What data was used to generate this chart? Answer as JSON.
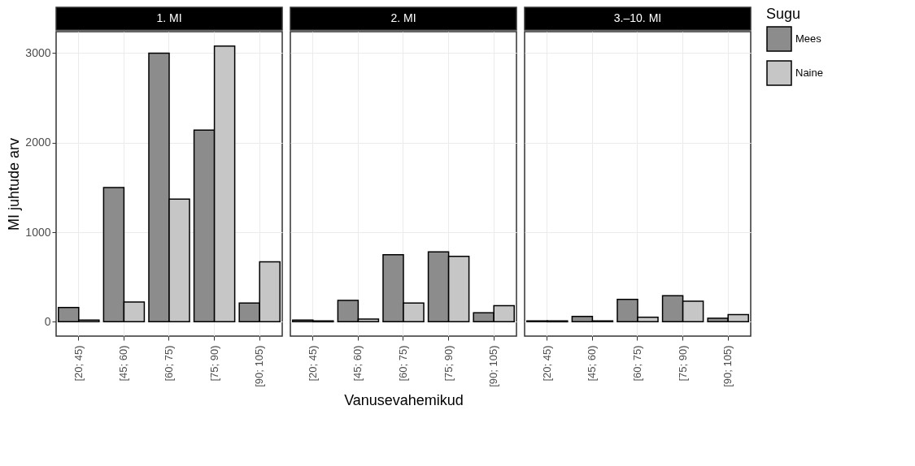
{
  "chart_data": [
    {
      "type": "bar",
      "title": "1. MI",
      "ylabel": "MI juhtude arv",
      "legend_title": "Sugu",
      "legend": "right",
      "categories": [
        "[20; 45)",
        "[45; 60)",
        "[60; 75)",
        "[75; 90)",
        "[90; 105)"
      ],
      "ylim": [
        -160,
        3240
      ],
      "yticks": [
        0,
        1000,
        2000,
        3000
      ],
      "grid": true,
      "series": [
        {
          "name": "Mees",
          "color": "#8c8c8c",
          "values": [
            160,
            1500,
            3000,
            2140,
            210
          ]
        },
        {
          "name": "Naine",
          "color": "#c6c6c6",
          "values": [
            20,
            220,
            1370,
            3080,
            670
          ]
        }
      ]
    },
    {
      "type": "bar",
      "title": "2. MI",
      "xlabel": "Vanusevahemikud",
      "categories": [
        "[20; 45)",
        "[45; 60)",
        "[60; 75)",
        "[75; 90)",
        "[90; 105)"
      ],
      "ylim": [
        -160,
        3240
      ],
      "yticks": [
        0,
        1000,
        2000,
        3000
      ],
      "grid": true,
      "tick_labels": "x",
      "series": [
        {
          "color": "#8c8c8c",
          "values": [
            20,
            240,
            750,
            780,
            100
          ]
        },
        {
          "color": "#c6c6c6",
          "values": [
            10,
            30,
            210,
            730,
            180
          ]
        }
      ]
    },
    {
      "type": "bar",
      "title": "3.–10. MI",
      "categories": [
        "[20; 45)",
        "[45; 60)",
        "[60; 75)",
        "[75; 90)",
        "[90; 105)"
      ],
      "ylim": [
        -160,
        3240
      ],
      "yticks": [
        0,
        1000,
        2000,
        3000
      ],
      "grid": true,
      "tick_labels": "x",
      "series": [
        {
          "color": "#8c8c8c",
          "values": [
            10,
            60,
            250,
            290,
            40
          ]
        },
        {
          "color": "#c6c6c6",
          "values": [
            10,
            10,
            50,
            230,
            80
          ]
        }
      ]
    }
  ]
}
